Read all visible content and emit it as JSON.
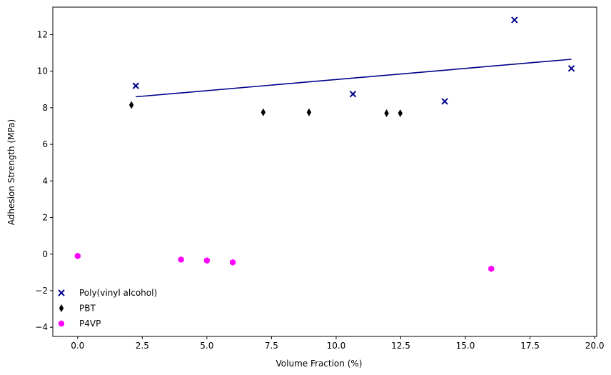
{
  "chart_data": {
    "type": "scatter",
    "title": "",
    "xlabel": "Volume Fraction (%)",
    "ylabel": "Adhesion Strength (MPa)",
    "xlim": [
      -0.96,
      20.08
    ],
    "ylim": [
      -4.5,
      13.5
    ],
    "grid": false,
    "legend_placement": "lower-left",
    "x_ticks": [
      0.0,
      2.5,
      5.0,
      7.5,
      10.0,
      12.5,
      15.0,
      17.5,
      20.0
    ],
    "x_tick_labels": [
      "0.0",
      "2.5",
      "5.0",
      "7.5",
      "10.0",
      "12.5",
      "15.0",
      "17.5",
      "20.0"
    ],
    "y_ticks": [
      -4,
      -2,
      0,
      2,
      4,
      6,
      8,
      10,
      12
    ],
    "y_tick_labels": [
      "−4",
      "−2",
      "0",
      "2",
      "4",
      "6",
      "8",
      "10",
      "12"
    ],
    "series": [
      {
        "name": "Poly(vinyl alcohol)",
        "marker": "x",
        "color": "#00008b",
        "x": [
          2.25,
          10.65,
          14.2,
          16.9,
          19.1
        ],
        "y": [
          9.2,
          8.75,
          8.35,
          12.8,
          10.15
        ],
        "fit_line": {
          "x": [
            2.25,
            19.1
          ],
          "y": [
            8.6,
            10.65
          ]
        }
      },
      {
        "name": "PBT",
        "marker": "thin-diamond",
        "color": "#000000",
        "x": [
          2.08,
          7.18,
          8.95,
          11.95,
          12.48
        ],
        "y": [
          8.15,
          7.75,
          7.75,
          7.7,
          7.7
        ]
      },
      {
        "name": "P4VP",
        "marker": "hexagon",
        "color": "#ff00ff",
        "x": [
          0.0,
          4.0,
          5.0,
          6.0,
          16.0
        ],
        "y": [
          -0.1,
          -0.3,
          -0.35,
          -0.45,
          -0.8
        ]
      }
    ]
  }
}
